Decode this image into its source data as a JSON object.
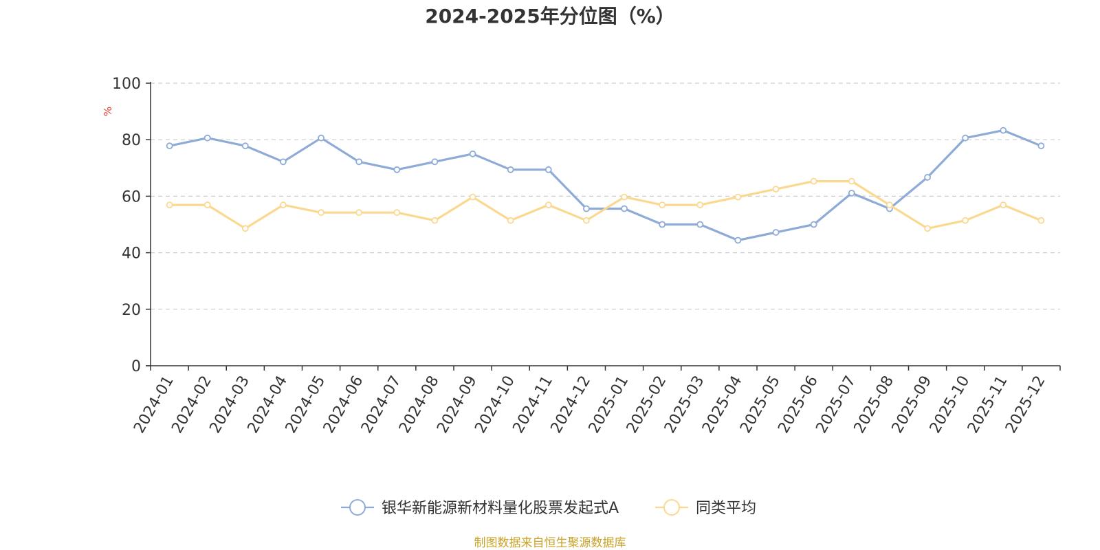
{
  "chart_data": {
    "type": "line",
    "title": "2024-2025年分位图（%）",
    "xlabel": "",
    "ylabel": "%",
    "ylim": [
      0,
      100
    ],
    "yticks": [
      0,
      20,
      40,
      60,
      80,
      100
    ],
    "grid": "horizontal-dashed",
    "legend_position": "bottom-center",
    "categories": [
      "2024-01",
      "2024-02",
      "2024-03",
      "2024-04",
      "2024-05",
      "2024-06",
      "2024-07",
      "2024-08",
      "2024-09",
      "2024-10",
      "2024-11",
      "2024-12",
      "2025-01",
      "2025-02",
      "2025-03",
      "2025-04",
      "2025-05",
      "2025-06",
      "2025-07",
      "2025-08",
      "2025-09",
      "2025-10",
      "2025-11",
      "2025-12"
    ],
    "series": [
      {
        "name": "银华新能源新材料量化股票发起式A",
        "color": "#8eabd8",
        "values": [
          77.8,
          80.6,
          77.8,
          72.2,
          80.6,
          72.2,
          69.4,
          72.2,
          75.0,
          69.4,
          69.4,
          55.6,
          55.6,
          50.0,
          50.0,
          44.4,
          47.2,
          50.0,
          61.1,
          55.6,
          66.7,
          80.6,
          83.3,
          77.8
        ]
      },
      {
        "name": "同类平均",
        "color": "#fbd88f",
        "values": [
          56.9,
          56.9,
          48.6,
          56.9,
          54.2,
          54.2,
          54.2,
          51.4,
          59.7,
          51.4,
          56.9,
          51.4,
          59.7,
          56.9,
          56.9,
          59.7,
          62.5,
          65.3,
          65.3,
          56.9,
          48.6,
          51.4,
          56.9,
          51.4
        ]
      }
    ]
  },
  "source": "制图数据来自恒生聚源数据库",
  "colors": {
    "axis": "#333333",
    "grid": "#cccccc",
    "ylabel": "#e8382c",
    "source": "#c9a227"
  }
}
